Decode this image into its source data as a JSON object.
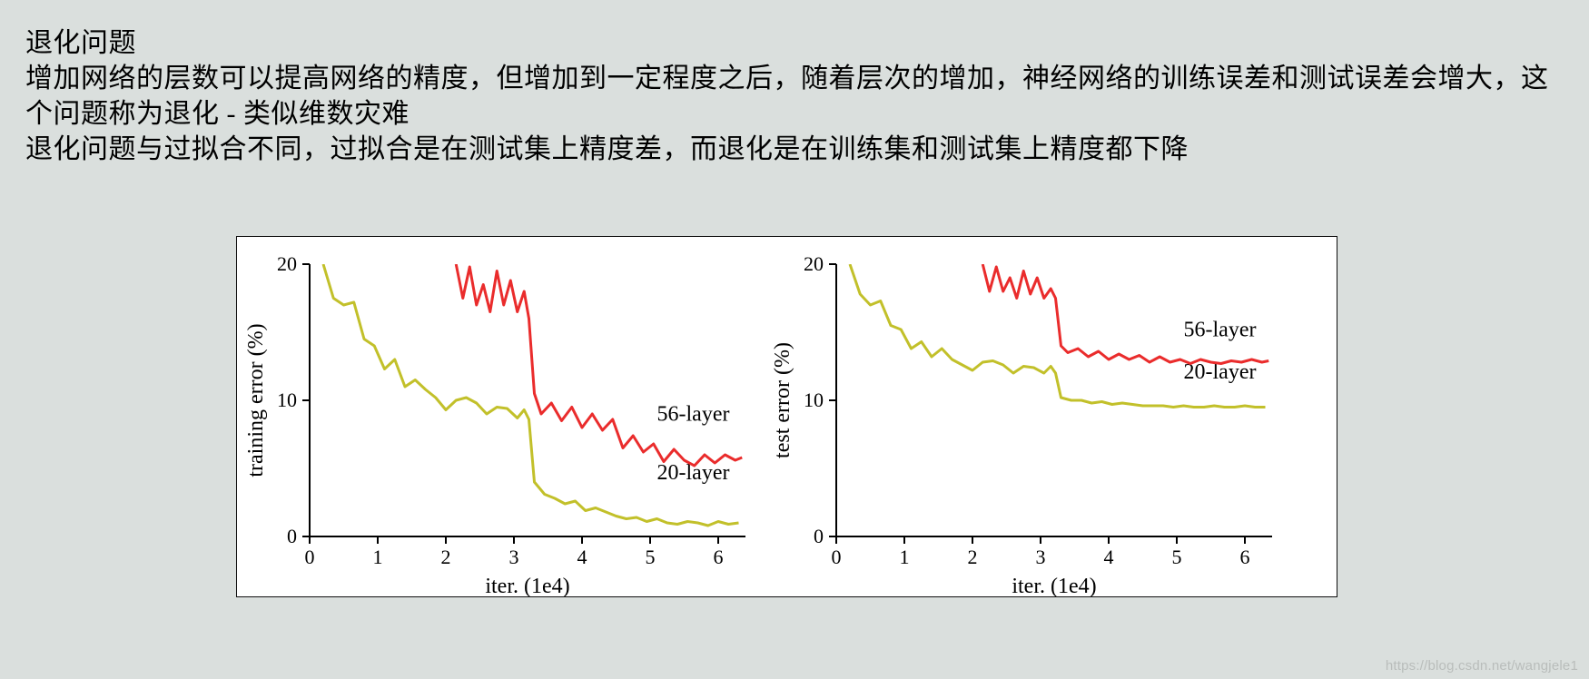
{
  "text": {
    "title": "退化问题",
    "p1": "增加网络的层数可以提高网络的精度，但增加到一定程度之后，随着层次的增加，神经网络的训练误差和测试误差会增大，这个问题称为退化 - 类似维数灾难",
    "p2": "退化问题与过拟合不同，过拟合是在测试集上精度差，而退化是在训练集和测试集上精度都下降"
  },
  "watermark": "https://blog.csdn.net/wangjele1",
  "figure": {
    "background_color": "#ffffff",
    "border_color": "#0f0f0f",
    "panels": [
      {
        "type": "line",
        "ylabel": "training error (%)",
        "xlabel": "iter. (1e4)",
        "xlim": [
          0,
          6.4
        ],
        "ylim": [
          0,
          20
        ],
        "xticks": [
          0,
          1,
          2,
          3,
          4,
          5,
          6
        ],
        "yticks": [
          0,
          10,
          20
        ],
        "axis_color": "#000000",
        "tick_fontsize": 22,
        "label_fontsize": 24,
        "line_width": 3,
        "series": [
          {
            "name": "20-layer",
            "color": "#c2c02a",
            "label": "20-layer",
            "label_xy": [
              5.1,
              4.2
            ],
            "points": [
              [
                0.2,
                20.0
              ],
              [
                0.35,
                17.5
              ],
              [
                0.5,
                17.0
              ],
              [
                0.65,
                17.2
              ],
              [
                0.8,
                14.5
              ],
              [
                0.95,
                14.0
              ],
              [
                1.1,
                12.3
              ],
              [
                1.25,
                13.0
              ],
              [
                1.4,
                11.0
              ],
              [
                1.55,
                11.5
              ],
              [
                1.7,
                10.8
              ],
              [
                1.85,
                10.2
              ],
              [
                2.0,
                9.3
              ],
              [
                2.15,
                10.0
              ],
              [
                2.3,
                10.2
              ],
              [
                2.45,
                9.8
              ],
              [
                2.6,
                9.0
              ],
              [
                2.75,
                9.5
              ],
              [
                2.9,
                9.4
              ],
              [
                3.05,
                8.7
              ],
              [
                3.15,
                9.3
              ],
              [
                3.22,
                8.6
              ],
              [
                3.3,
                4.0
              ],
              [
                3.45,
                3.1
              ],
              [
                3.6,
                2.8
              ],
              [
                3.75,
                2.4
              ],
              [
                3.9,
                2.6
              ],
              [
                4.05,
                1.9
              ],
              [
                4.2,
                2.1
              ],
              [
                4.35,
                1.8
              ],
              [
                4.5,
                1.5
              ],
              [
                4.65,
                1.3
              ],
              [
                4.8,
                1.4
              ],
              [
                4.95,
                1.1
              ],
              [
                5.1,
                1.3
              ],
              [
                5.25,
                1.0
              ],
              [
                5.4,
                0.9
              ],
              [
                5.55,
                1.1
              ],
              [
                5.7,
                1.0
              ],
              [
                5.85,
                0.8
              ],
              [
                6.0,
                1.1
              ],
              [
                6.15,
                0.9
              ],
              [
                6.3,
                1.0
              ]
            ]
          },
          {
            "name": "56-layer",
            "color": "#ea2c2c",
            "label": "56-layer",
            "label_xy": [
              5.1,
              8.5
            ],
            "points": [
              [
                2.15,
                20.0
              ],
              [
                2.25,
                17.5
              ],
              [
                2.35,
                19.8
              ],
              [
                2.45,
                17.0
              ],
              [
                2.55,
                18.5
              ],
              [
                2.65,
                16.5
              ],
              [
                2.75,
                19.5
              ],
              [
                2.85,
                17.0
              ],
              [
                2.95,
                18.8
              ],
              [
                3.05,
                16.5
              ],
              [
                3.15,
                18.0
              ],
              [
                3.22,
                16.0
              ],
              [
                3.3,
                10.5
              ],
              [
                3.4,
                9.0
              ],
              [
                3.55,
                9.8
              ],
              [
                3.7,
                8.5
              ],
              [
                3.85,
                9.5
              ],
              [
                4.0,
                8.0
              ],
              [
                4.15,
                9.0
              ],
              [
                4.3,
                7.8
              ],
              [
                4.45,
                8.6
              ],
              [
                4.6,
                6.5
              ],
              [
                4.75,
                7.4
              ],
              [
                4.9,
                6.2
              ],
              [
                5.05,
                6.8
              ],
              [
                5.2,
                5.5
              ],
              [
                5.35,
                6.4
              ],
              [
                5.5,
                5.6
              ],
              [
                5.65,
                5.2
              ],
              [
                5.8,
                6.0
              ],
              [
                5.95,
                5.4
              ],
              [
                6.1,
                6.0
              ],
              [
                6.25,
                5.6
              ],
              [
                6.35,
                5.8
              ]
            ]
          }
        ]
      },
      {
        "type": "line",
        "ylabel": "test error (%)",
        "xlabel": "iter. (1e4)",
        "xlim": [
          0,
          6.4
        ],
        "ylim": [
          0,
          20
        ],
        "xticks": [
          0,
          1,
          2,
          3,
          4,
          5,
          6
        ],
        "yticks": [
          0,
          10,
          20
        ],
        "axis_color": "#000000",
        "tick_fontsize": 22,
        "label_fontsize": 24,
        "line_width": 3,
        "series": [
          {
            "name": "20-layer",
            "color": "#c2c02a",
            "label": "20-layer",
            "label_xy": [
              5.1,
              11.6
            ],
            "points": [
              [
                0.2,
                20.0
              ],
              [
                0.35,
                17.8
              ],
              [
                0.5,
                17.0
              ],
              [
                0.65,
                17.3
              ],
              [
                0.8,
                15.5
              ],
              [
                0.95,
                15.2
              ],
              [
                1.1,
                13.8
              ],
              [
                1.25,
                14.3
              ],
              [
                1.4,
                13.2
              ],
              [
                1.55,
                13.8
              ],
              [
                1.7,
                13.0
              ],
              [
                1.85,
                12.6
              ],
              [
                2.0,
                12.2
              ],
              [
                2.15,
                12.8
              ],
              [
                2.3,
                12.9
              ],
              [
                2.45,
                12.6
              ],
              [
                2.6,
                12.0
              ],
              [
                2.75,
                12.5
              ],
              [
                2.9,
                12.4
              ],
              [
                3.05,
                12.0
              ],
              [
                3.15,
                12.5
              ],
              [
                3.22,
                12.0
              ],
              [
                3.3,
                10.2
              ],
              [
                3.45,
                10.0
              ],
              [
                3.6,
                10.0
              ],
              [
                3.75,
                9.8
              ],
              [
                3.9,
                9.9
              ],
              [
                4.05,
                9.7
              ],
              [
                4.2,
                9.8
              ],
              [
                4.35,
                9.7
              ],
              [
                4.5,
                9.6
              ],
              [
                4.65,
                9.6
              ],
              [
                4.8,
                9.6
              ],
              [
                4.95,
                9.5
              ],
              [
                5.1,
                9.6
              ],
              [
                5.25,
                9.5
              ],
              [
                5.4,
                9.5
              ],
              [
                5.55,
                9.6
              ],
              [
                5.7,
                9.5
              ],
              [
                5.85,
                9.5
              ],
              [
                6.0,
                9.6
              ],
              [
                6.15,
                9.5
              ],
              [
                6.3,
                9.5
              ]
            ]
          },
          {
            "name": "56-layer",
            "color": "#ea2c2c",
            "label": "56-layer",
            "label_xy": [
              5.1,
              14.7
            ],
            "points": [
              [
                2.15,
                20.0
              ],
              [
                2.25,
                18.0
              ],
              [
                2.35,
                19.8
              ],
              [
                2.45,
                18.0
              ],
              [
                2.55,
                19.0
              ],
              [
                2.65,
                17.5
              ],
              [
                2.75,
                19.5
              ],
              [
                2.85,
                17.8
              ],
              [
                2.95,
                19.0
              ],
              [
                3.05,
                17.5
              ],
              [
                3.15,
                18.2
              ],
              [
                3.22,
                17.5
              ],
              [
                3.3,
                14.0
              ],
              [
                3.4,
                13.5
              ],
              [
                3.55,
                13.8
              ],
              [
                3.7,
                13.2
              ],
              [
                3.85,
                13.6
              ],
              [
                4.0,
                13.0
              ],
              [
                4.15,
                13.4
              ],
              [
                4.3,
                13.0
              ],
              [
                4.45,
                13.3
              ],
              [
                4.6,
                12.8
              ],
              [
                4.75,
                13.2
              ],
              [
                4.9,
                12.8
              ],
              [
                5.05,
                13.0
              ],
              [
                5.2,
                12.7
              ],
              [
                5.35,
                13.0
              ],
              [
                5.5,
                12.8
              ],
              [
                5.65,
                12.7
              ],
              [
                5.8,
                12.9
              ],
              [
                5.95,
                12.8
              ],
              [
                6.1,
                13.0
              ],
              [
                6.25,
                12.8
              ],
              [
                6.35,
                12.9
              ]
            ]
          }
        ]
      }
    ]
  }
}
